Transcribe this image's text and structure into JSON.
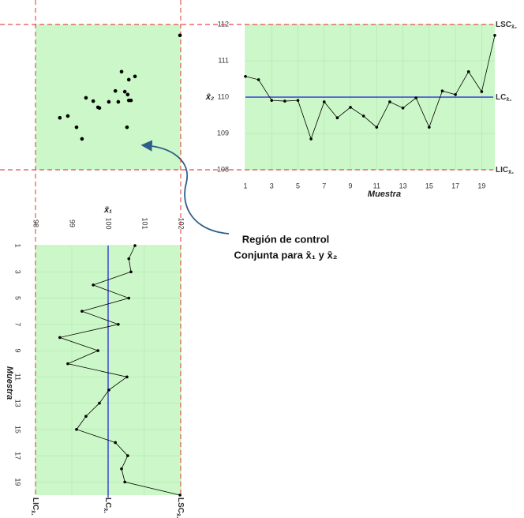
{
  "chart_data": [
    {
      "type": "line",
      "orientation": "horizontal",
      "x": [
        1,
        2,
        3,
        4,
        5,
        6,
        7,
        8,
        9,
        10,
        11,
        12,
        13,
        14,
        15,
        16,
        17,
        18,
        19,
        20
      ],
      "values": [
        110.57,
        110.48,
        109.91,
        109.89,
        109.91,
        108.85,
        109.87,
        109.43,
        109.72,
        109.48,
        109.17,
        109.87,
        109.7,
        109.98,
        109.17,
        110.17,
        110.07,
        110.7,
        110.15,
        111.7
      ],
      "xlim": [
        1,
        20
      ],
      "xticks": [
        1,
        3,
        5,
        7,
        9,
        11,
        13,
        15,
        17,
        19
      ],
      "ylim": [
        108,
        112
      ],
      "yticks": [
        108,
        109,
        110,
        111,
        112
      ],
      "xlabel": "Muestra",
      "ylabel": "x̄₂",
      "color": "#000000",
      "grid": true,
      "background": "#ccf7c8",
      "control_lines": [
        {
          "label": "LSC",
          "subscript": "x̄₂",
          "value": 112,
          "color": "#e02020"
        },
        {
          "label": "LC",
          "subscript": "x̄₂",
          "value": 110,
          "color": "#1a1adb"
        },
        {
          "label": "LIC",
          "subscript": "x̄₂",
          "value": 108,
          "color": "#e02020"
        }
      ]
    },
    {
      "type": "line",
      "orientation": "vertical",
      "x": [
        1,
        2,
        3,
        4,
        5,
        6,
        7,
        8,
        9,
        10,
        11,
        12,
        13,
        14,
        15,
        16,
        17,
        18,
        19,
        20
      ],
      "values": [
        100.74,
        100.57,
        100.63,
        99.59,
        100.57,
        99.28,
        100.28,
        98.67,
        99.72,
        98.89,
        100.52,
        100.02,
        99.76,
        99.39,
        99.13,
        100.2,
        100.54,
        100.37,
        100.46,
        101.98
      ],
      "xlim": [
        1,
        20
      ],
      "xticks": [
        1,
        3,
        5,
        7,
        9,
        11,
        13,
        15,
        17,
        19
      ],
      "ylim": [
        98,
        102
      ],
      "yticks": [
        98,
        99,
        100,
        101,
        102
      ],
      "xlabel": "Muestra",
      "ylabel": "x̄₁",
      "color": "#000000",
      "grid": true,
      "background": "#ccf7c8",
      "control_lines": [
        {
          "label": "LIC",
          "subscript": "x̄₁",
          "value": 98,
          "color": "#e02020"
        },
        {
          "label": "LC",
          "subscript": "x̄₁",
          "value": 100,
          "color": "#1a1adb"
        },
        {
          "label": "LSC",
          "subscript": "x̄₁",
          "value": 102,
          "color": "#e02020"
        }
      ]
    },
    {
      "type": "scatter",
      "x": [
        100.74,
        100.57,
        100.63,
        99.59,
        100.57,
        99.28,
        100.28,
        98.67,
        99.72,
        98.89,
        100.52,
        100.02,
        99.76,
        99.39,
        99.13,
        100.2,
        100.54,
        100.37,
        100.46,
        101.98
      ],
      "values": [
        110.57,
        110.48,
        109.91,
        109.89,
        109.91,
        108.85,
        109.87,
        109.43,
        109.72,
        109.48,
        109.17,
        109.87,
        109.7,
        109.98,
        109.17,
        110.17,
        110.07,
        110.7,
        110.15,
        111.7
      ],
      "xlim": [
        98,
        102
      ],
      "ylim": [
        108,
        112
      ],
      "color": "#000000",
      "background": "#ccf7c8"
    }
  ],
  "annotation": {
    "lines": [
      "Región de control",
      "Conjunta para x̄₁ y x̄₂"
    ],
    "color": "#2e5f8a"
  }
}
